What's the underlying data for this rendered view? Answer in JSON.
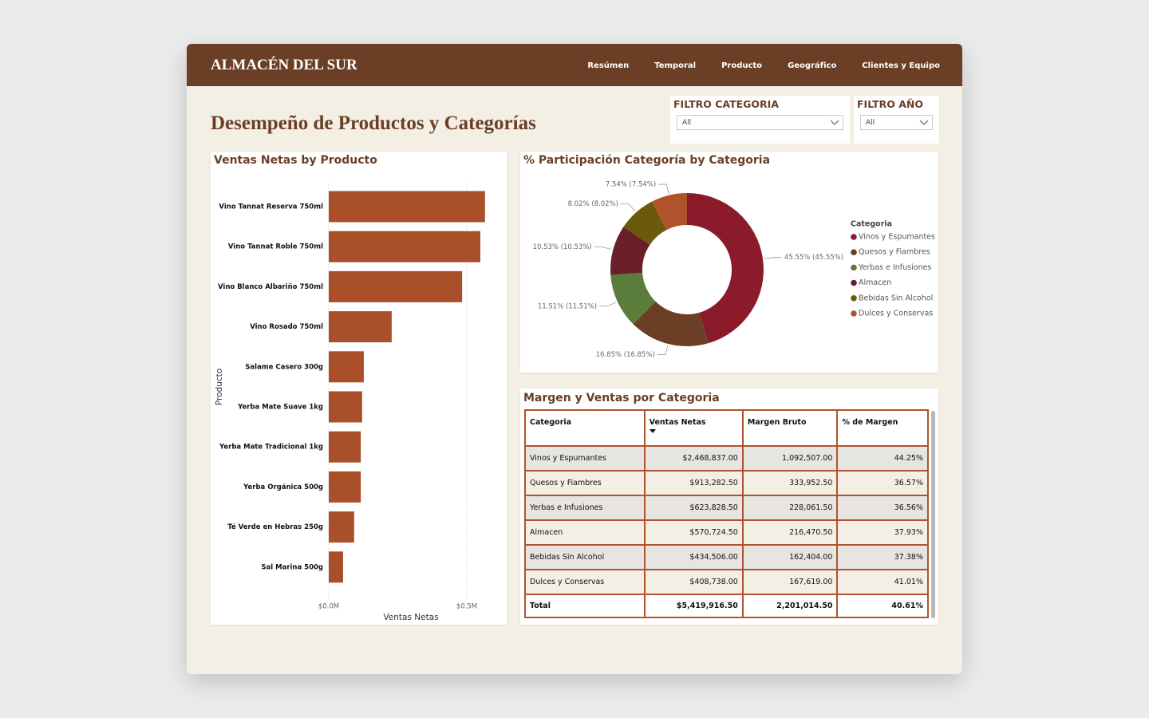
{
  "header": {
    "brand": "ALMACÉN DEL SUR",
    "nav": [
      "Resúmen",
      "Temporal",
      "Producto",
      "Geográfico",
      "Clientes y Equipo"
    ]
  },
  "page_title": "Desempeño de Productos y Categorías",
  "filters": [
    {
      "label": "FILTRO CATEGORIA",
      "value": "All"
    },
    {
      "label": "FILTRO AÑO",
      "value": "All"
    }
  ],
  "chart_data": [
    {
      "type": "bar",
      "orientation": "horizontal",
      "title": "Ventas Netas by Producto",
      "x_label": "Ventas Netas",
      "y_label": "Producto",
      "categories": [
        "Vino Tannat Reserva 750ml",
        "Vino Tannat Roble 750ml",
        "Vino Blanco Albariño 750ml",
        "Vino Rosado 750ml",
        "Salame Casero 300g",
        "Yerba Mate Suave 1kg",
        "Yerba Mate Tradicional 1kg",
        "Yerba Orgánica 500g",
        "Té Verde en Hebras 250g",
        "Sal Marina 500g"
      ],
      "values": [
        566000,
        549000,
        483000,
        228000,
        127000,
        121000,
        116000,
        116000,
        92000,
        52000
      ],
      "color": "#a9502b",
      "xlim": [
        0,
        600000
      ],
      "xticks": [
        {
          "value": 0,
          "label": "$0.0M"
        },
        {
          "value": 500000,
          "label": "$0.5M"
        }
      ],
      "grid": true
    },
    {
      "type": "pie",
      "title": "% Participación Categoría by Categoria",
      "legend_title": "Categoria",
      "categories": [
        "Vinos y Espumantes",
        "Quesos y Fiambres",
        "Yerbas e Infusiones",
        "Almacen",
        "Bebidas Sin Alcohol",
        "Dulces y Conservas"
      ],
      "values": [
        45.55,
        16.85,
        11.51,
        10.53,
        8.02,
        7.54
      ],
      "value_labels": [
        "45.55% (45.55%)",
        "16.85% (16.85%)",
        "11.51% (11.51%)",
        "10.53% (10.53%)",
        "8.02% (8.02%)",
        "7.54% (7.54%)"
      ],
      "colors": [
        "#8b1a2b",
        "#6b3e26",
        "#5b7d3c",
        "#6a1f2b",
        "#6b5a0b",
        "#b0532c"
      ],
      "donut": true
    }
  ],
  "table": {
    "title": "Margen y Ventas por Categoria",
    "columns": [
      "Categoria",
      "Ventas Netas",
      "Margen Bruto",
      "% de Margen"
    ],
    "rows": [
      [
        "Vinos y Espumantes",
        "$2,468,837.00",
        "1,092,507.00",
        "44.25%"
      ],
      [
        "Quesos y Fiambres",
        "$913,282.50",
        "333,952.50",
        "36.57%"
      ],
      [
        "Yerbas e Infusiones",
        "$623,828.50",
        "228,061.50",
        "36.56%"
      ],
      [
        "Almacen",
        "$570,724.50",
        "216,470.50",
        "37.93%"
      ],
      [
        "Bebidas Sin Alcohol",
        "$434,506.00",
        "162,404.00",
        "37.38%"
      ],
      [
        "Dulces y Conservas",
        "$408,738.00",
        "167,619.00",
        "41.01%"
      ]
    ],
    "total": [
      "Total",
      "$5,419,916.50",
      "2,201,014.50",
      "40.61%"
    ]
  }
}
